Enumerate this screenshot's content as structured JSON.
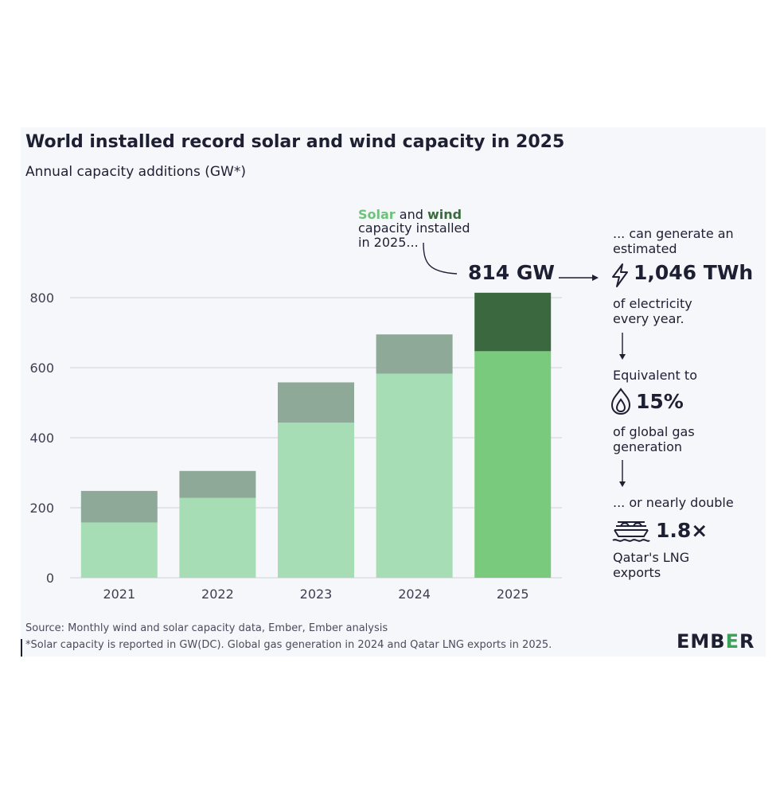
{
  "title": "World installed record solar and wind capacity in 2025",
  "subtitle": "Annual capacity additions (GW*)",
  "chart_data": {
    "type": "bar",
    "stacked": true,
    "categories": [
      "2021",
      "2022",
      "2023",
      "2024",
      "2025"
    ],
    "series": [
      {
        "name": "Solar",
        "values": [
          158,
          228,
          443,
          583,
          647
        ]
      },
      {
        "name": "Wind",
        "values": [
          90,
          77,
          115,
          112,
          167
        ]
      }
    ],
    "totals": [
      248,
      305,
      558,
      695,
      814
    ],
    "yticks": [
      0,
      200,
      400,
      600,
      800
    ],
    "ylim": [
      0,
      800
    ],
    "grid": true,
    "colors": {
      "solar": "#a6ddb5",
      "wind": "#8fa998",
      "solar_highlight": "#7aca7e",
      "wind_highlight": "#3c6840",
      "grid": "#cdd0d8",
      "axis_text": "#3c3e52"
    }
  },
  "annotation": {
    "solar_word": "Solar",
    "and_word": " and ",
    "wind_word": "wind",
    "line2": "capacity installed",
    "line3": "in 2025...",
    "total": "814 GW"
  },
  "facts": {
    "f1_line1": "... can generate an",
    "f1_line2": "estimated",
    "f1_value": "1,046 TWh",
    "f1_line3": "of electricity",
    "f1_line4": "every year.",
    "f2_line1": "Equivalent to",
    "f2_value": "15%",
    "f2_line2": "of global gas",
    "f2_line3": "generation",
    "f3_line1": "... or nearly double",
    "f3_value": "1.8×",
    "f3_line2": "Qatar's LNG",
    "f3_line3": "exports"
  },
  "source": "Source: Monthly wind and solar capacity data, Ember, Ember analysis",
  "footnote": "*Solar capacity is reported in GW(DC). Global gas generation in 2024 and Qatar LNG exports in 2025.",
  "logo": {
    "left": "EMB",
    "mid": "E",
    "right": "R"
  }
}
